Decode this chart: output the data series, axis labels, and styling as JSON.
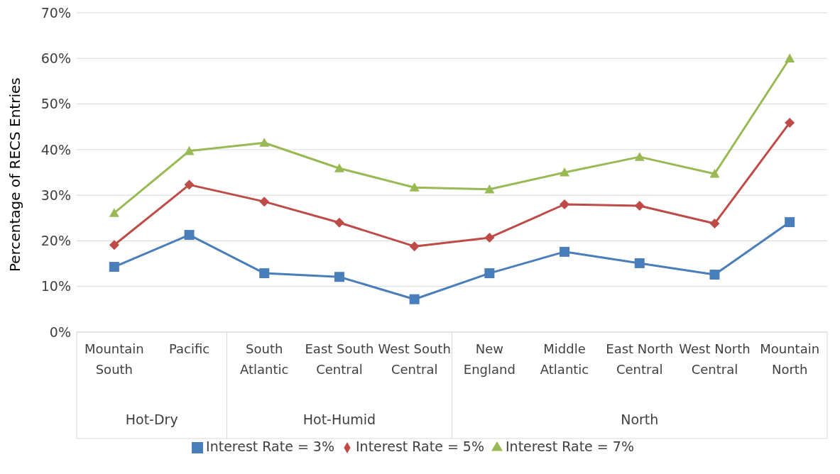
{
  "chart_data": {
    "type": "line",
    "ylabel": "Percentage of RECS Entries",
    "categories": [
      "Mountain South",
      "Pacific",
      "South Atlantic",
      "East South Central",
      "West South Central",
      "New England",
      "Middle Atlantic",
      "East North Central",
      "West North Central",
      "Mountain North"
    ],
    "series": [
      {
        "name": "Interest Rate = 3%",
        "color": "#4a7ebb",
        "marker": "square",
        "values": [
          14.3,
          21.3,
          12.9,
          12.1,
          7.2,
          12.9,
          17.6,
          15.1,
          12.6,
          24.1
        ]
      },
      {
        "name": "Interest Rate = 5%",
        "color": "#be4b48",
        "marker": "diamond",
        "values": [
          19.1,
          32.3,
          28.6,
          24.0,
          18.8,
          20.7,
          28.0,
          27.7,
          23.8,
          45.9
        ]
      },
      {
        "name": "Interest Rate = 7%",
        "color": "#98b954",
        "marker": "triangle",
        "values": [
          26.1,
          39.7,
          41.5,
          35.9,
          31.7,
          31.3,
          35.0,
          38.4,
          34.7,
          60.0
        ]
      }
    ],
    "ylim": [
      0,
      70
    ],
    "yticks": [
      {
        "value": 0,
        "label": "0%"
      },
      {
        "value": 10,
        "label": "10%"
      },
      {
        "value": 20,
        "label": "20%"
      },
      {
        "value": 30,
        "label": "30%"
      },
      {
        "value": 40,
        "label": "40%"
      },
      {
        "value": 50,
        "label": "50%"
      },
      {
        "value": 60,
        "label": "60%"
      },
      {
        "value": 70,
        "label": "70%"
      }
    ],
    "grid": "y",
    "legend": "bottom",
    "annotations": [
      "Hot-Dry",
      "Hot-Humid",
      "North"
    ]
  }
}
